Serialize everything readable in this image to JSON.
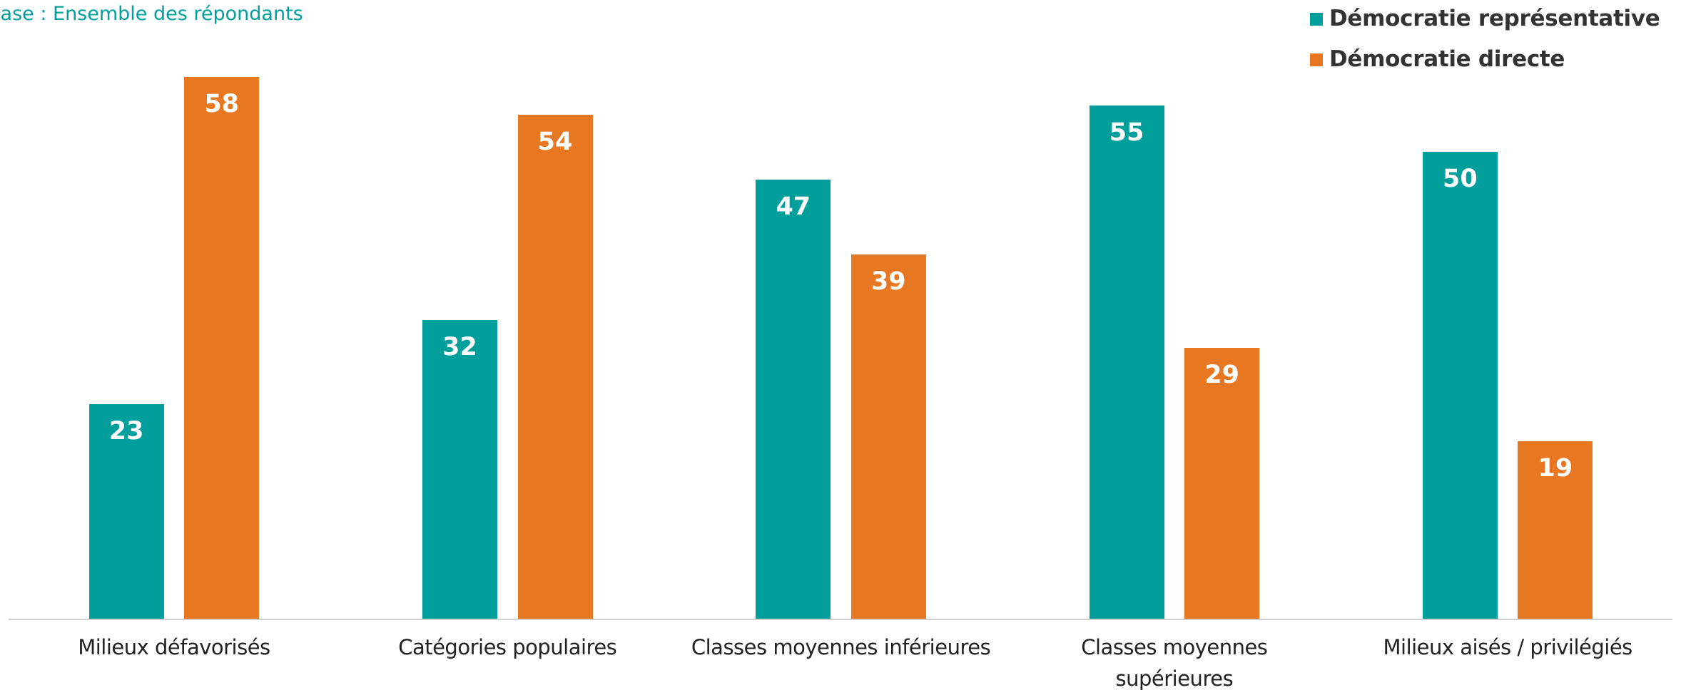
{
  "chart_data": {
    "type": "bar",
    "subtitle": "Base : Ensemble des répondants",
    "categories": [
      "Milieux défavorisés",
      "Catégories populaires",
      "Classes moyennes inférieures",
      "Classes moyennes supérieures",
      "Milieux aisés / privilégiés"
    ],
    "series": [
      {
        "name": "Démocratie représentative",
        "color": "#009f9c",
        "values": [
          23,
          32,
          47,
          55,
          50
        ]
      },
      {
        "name": "Démocratie directe",
        "color": "#e87722",
        "values": [
          58,
          54,
          39,
          29,
          19
        ]
      }
    ],
    "legend": "top-right"
  }
}
